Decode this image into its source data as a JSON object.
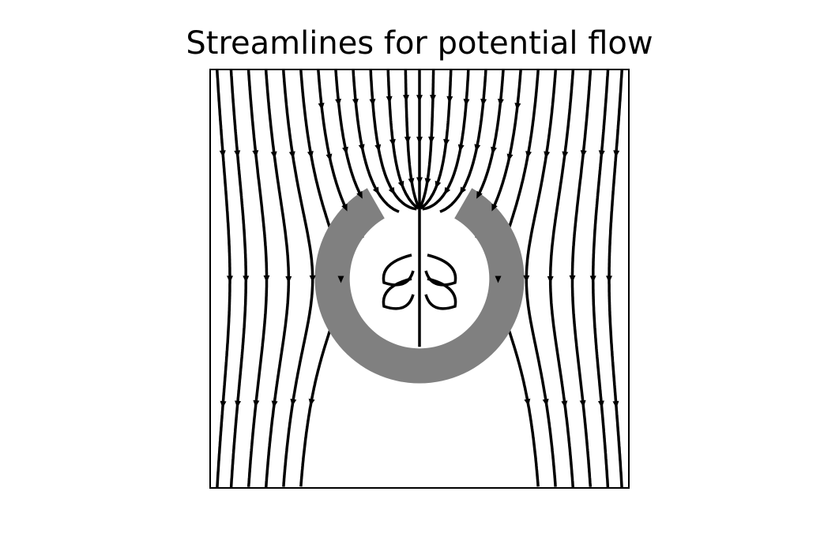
{
  "chart_data": {
    "type": "streamplot",
    "title": "Streamlines for potential flow",
    "xlabel": "",
    "ylabel": "",
    "xlim": [
      -3,
      3
    ],
    "ylim": [
      -3,
      3
    ],
    "axis_visible": false,
    "grid": false,
    "legend": "none",
    "field": "uniform downward flow (speed 1) past a cylinder of radius 1 centred at the origin",
    "flow_direction": "downward",
    "obstacle": {
      "shape": "annulus",
      "center": [
        0,
        0
      ],
      "inner_radius": 1.0,
      "outer_radius": 1.5,
      "gap_top": true,
      "color": "#808080"
    },
    "streamline_seeds_x": [
      -2.9,
      -2.7,
      -2.45,
      -2.2,
      -1.95,
      -1.7,
      -1.45,
      -1.2,
      -0.95,
      -0.7,
      -0.45,
      -0.2,
      0.0,
      0.2,
      0.45,
      0.7,
      0.95,
      1.2,
      1.45,
      1.7,
      1.95,
      2.2,
      2.45,
      2.7,
      2.9
    ],
    "line_color": "#000000",
    "arrow_color": "#000000"
  }
}
